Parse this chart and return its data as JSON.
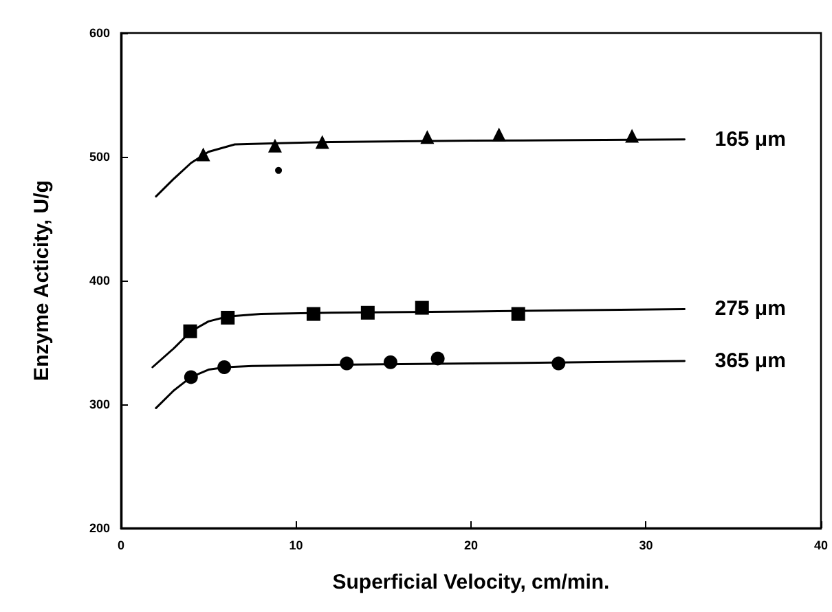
{
  "chart_data": {
    "type": "scatter",
    "xlabel": "Superficial Velocity, cm/min.",
    "ylabel": "Enzyme Acticity, U/g",
    "xlim": [
      0,
      40
    ],
    "ylim": [
      200,
      600
    ],
    "xticks": [
      0,
      10,
      20,
      30,
      40
    ],
    "yticks": [
      200,
      300,
      400,
      500,
      600
    ],
    "grid": false,
    "legend": false,
    "series": [
      {
        "marker": "triangle",
        "color": "#000000",
        "x": [
          4.7,
          8.8,
          11.5,
          17.5,
          21.6,
          29.2
        ],
        "values": [
          502,
          509,
          512,
          516,
          518,
          517
        ]
      },
      {
        "marker": "circle",
        "color": "#000000",
        "x": [
          9.0
        ],
        "values": [
          489
        ]
      },
      {
        "marker": "square",
        "color": "#000000",
        "x": [
          3.95,
          6.1,
          11.0,
          14.1,
          17.2,
          22.7
        ],
        "values": [
          359,
          370,
          373,
          374,
          378,
          373
        ]
      },
      {
        "marker": "circle",
        "color": "#000000",
        "x": [
          4.0,
          5.9,
          12.9,
          15.4,
          18.1,
          25.0
        ],
        "values": [
          322,
          330,
          333,
          334,
          337,
          333
        ]
      },
      {
        "type": "line",
        "name": "165 μm",
        "marker": "none",
        "line_style": "solid",
        "color": "#000000",
        "x": [
          2,
          3,
          4,
          5,
          6.5,
          9,
          12,
          20,
          32.2
        ],
        "values": [
          468,
          482,
          495,
          504,
          510,
          511,
          512,
          513,
          514
        ]
      },
      {
        "type": "line",
        "name": "275 μm",
        "marker": "none",
        "line_style": "solid",
        "color": "#000000",
        "x": [
          1.8,
          3,
          4,
          5,
          6.1,
          8,
          12,
          20,
          32.2
        ],
        "values": [
          330,
          345,
          359,
          367,
          371,
          373,
          374,
          375,
          377
        ]
      },
      {
        "type": "line",
        "name": "365 μm",
        "marker": "none",
        "line_style": "solid",
        "color": "#000000",
        "x": [
          2,
          3,
          4,
          5,
          6,
          7.5,
          12,
          20,
          32.2
        ],
        "values": [
          297,
          311,
          322,
          328,
          330,
          331,
          332,
          333,
          335
        ]
      }
    ]
  }
}
